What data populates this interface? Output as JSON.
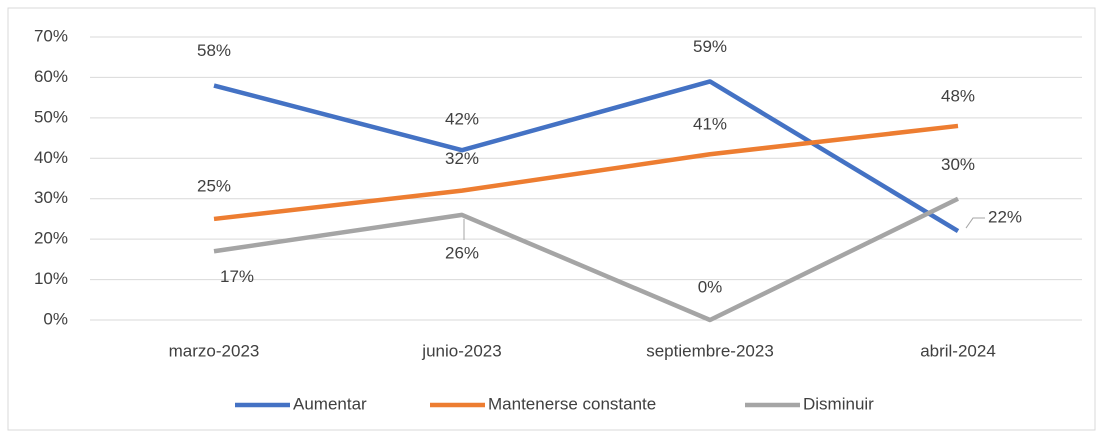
{
  "chart_data": {
    "type": "line",
    "categories": [
      "marzo-2023",
      "junio-2023",
      "septiembre-2023",
      "abril-2024"
    ],
    "series": [
      {
        "name": "Aumentar",
        "color": "#4472c4",
        "values": [
          58,
          42,
          59,
          22
        ],
        "value_labels": [
          "58%",
          "42%",
          "59%",
          "22%"
        ]
      },
      {
        "name": "Mantenerse constante",
        "color": "#ed7d31",
        "values": [
          25,
          32,
          41,
          48
        ],
        "value_labels": [
          "25%",
          "32%",
          "41%",
          "48%"
        ]
      },
      {
        "name": "Disminuir",
        "color": "#a5a5a5",
        "values": [
          17,
          26,
          0,
          30
        ],
        "value_labels": [
          "17%",
          "26%",
          "0%",
          "30%"
        ]
      }
    ],
    "ylim": [
      0,
      70
    ],
    "yticks": [
      {
        "value": 0,
        "label": "0%"
      },
      {
        "value": 10,
        "label": "10%"
      },
      {
        "value": 20,
        "label": "20%"
      },
      {
        "value": 30,
        "label": "30%"
      },
      {
        "value": 40,
        "label": "40%"
      },
      {
        "value": 50,
        "label": "50%"
      },
      {
        "value": 60,
        "label": "60%"
      },
      {
        "value": 70,
        "label": "70%"
      }
    ],
    "grid": true,
    "legend": "bottom"
  }
}
